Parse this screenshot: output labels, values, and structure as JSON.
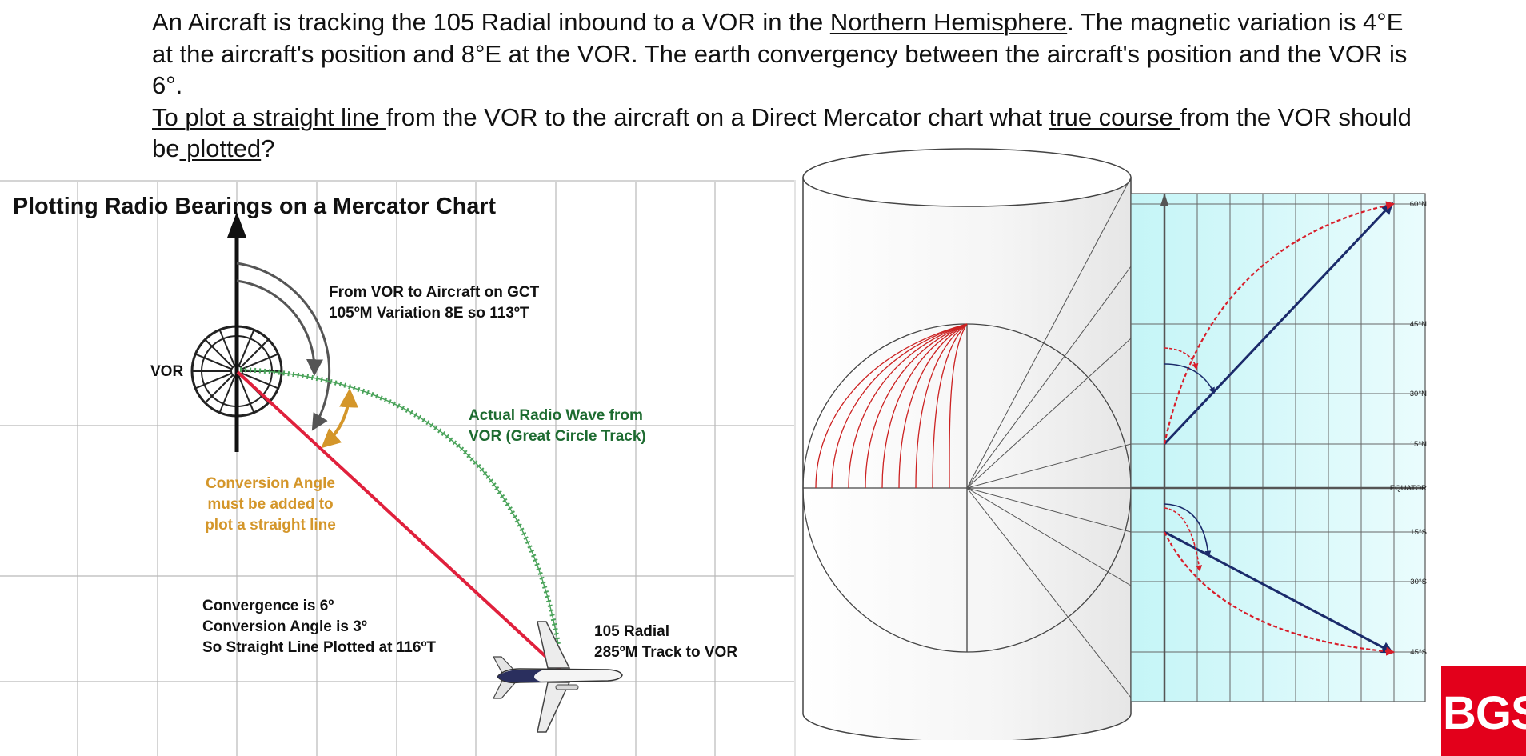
{
  "question": {
    "s1a": "An Aircraft is tracking the 105 Radial inbound to a VOR in the ",
    "s1b": "Northern Hemisphere",
    "s1c": ". The magnetic variation is 4°E at the aircraft's position and 8°E at the VOR. The earth convergency between  the aircraft's position and the VOR is 6°.",
    "s2a": "To plot a straight line ",
    "s2b": "from the VOR to the aircraft on a Direct Mercator chart what ",
    "s2c": "true course ",
    "s2d": "from the VOR should be",
    "s2e": " plotted",
    "s2f": "?"
  },
  "left_diagram": {
    "title": "Plotting Radio Bearings on a Mercator Chart",
    "vor_label": "VOR",
    "gct_line1": "From VOR to Aircraft on GCT",
    "gct_line2": "105ºM  Variation 8E so 113ºT",
    "wave_line1": "Actual Radio Wave from",
    "wave_line2": "VOR (Great Circle Track)",
    "conv_line1": "Conversion Angle",
    "conv_line2": "must be added to",
    "conv_line3": "plot a straight line",
    "sum_line1": "Convergence is 6º",
    "sum_line2": "Conversion Angle is 3º",
    "sum_line3": "So Straight Line Plotted at 116ºT",
    "radial_line1": "105 Radial",
    "radial_line2": "285ºM Track to VOR",
    "colors": {
      "rhumb": "#e0203c",
      "great_circle": "#4aa35a",
      "conversion": "#d4962a",
      "wave_text": "#1d6b30",
      "conv_text": "#d4962a"
    }
  },
  "right_diagram": {
    "lat_labels": [
      "60°N",
      "45°N",
      "30°N",
      "15°N",
      "EQUATOR",
      "15°S",
      "30°S",
      "45°S"
    ],
    "colors": {
      "chart_bg": "#c9f6f8",
      "straight": "#1b2b6b",
      "curve": "#d81e2a",
      "meridians": "#cc2222"
    }
  },
  "logo": {
    "text": "BGS"
  }
}
